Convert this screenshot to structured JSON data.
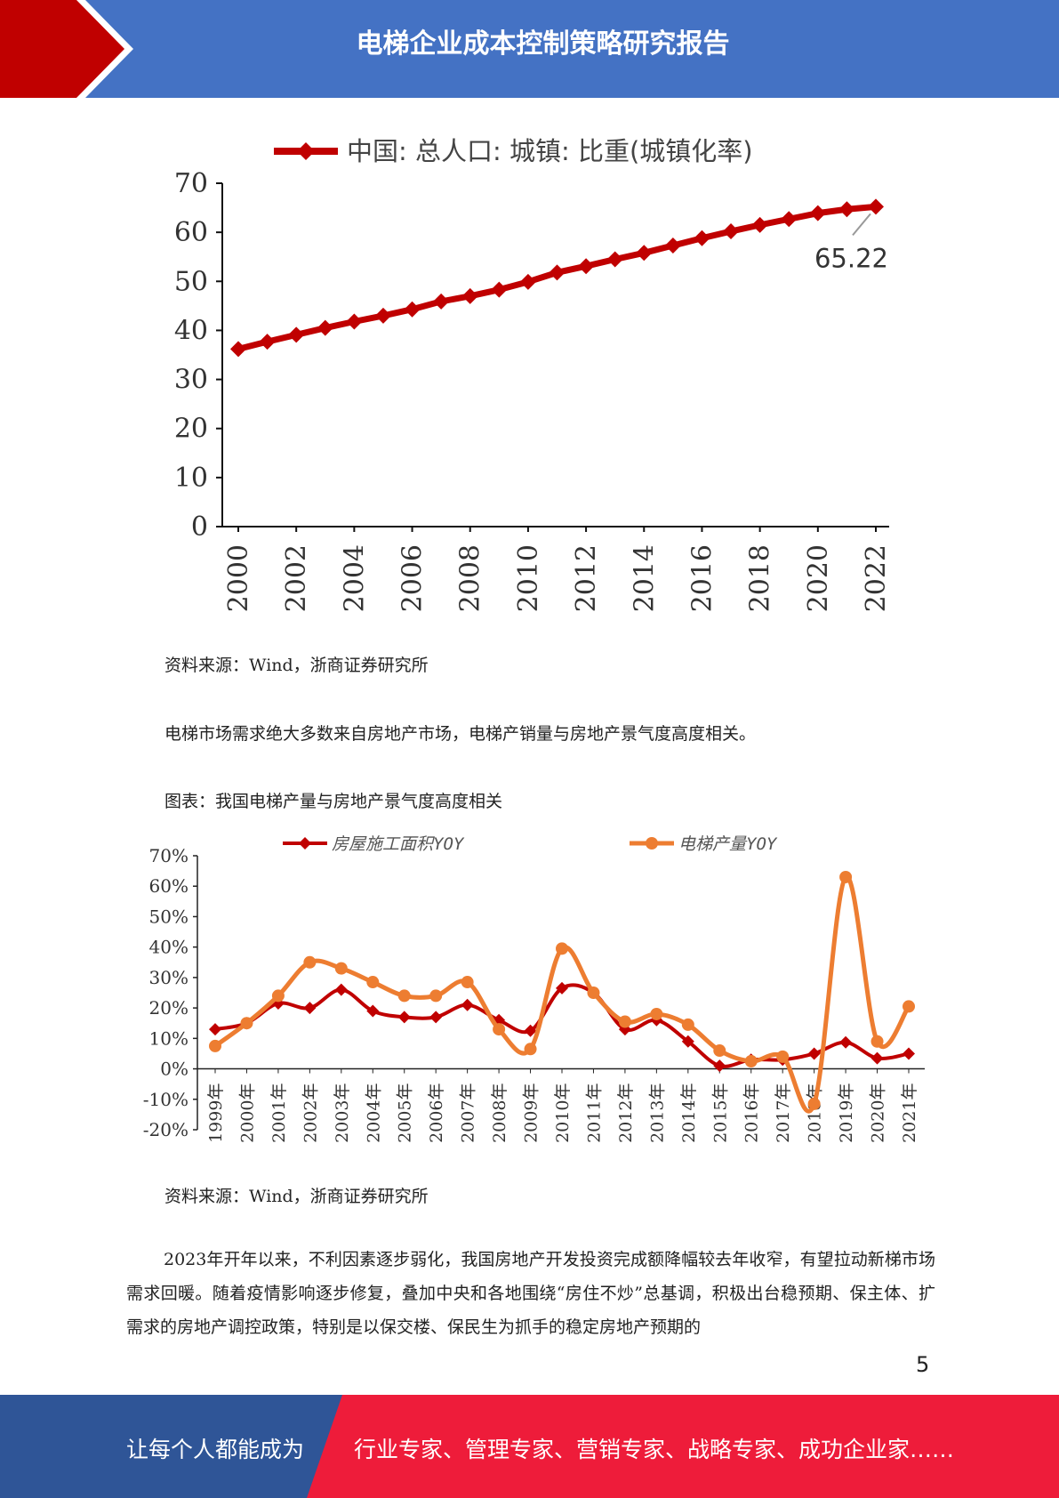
{
  "header": {
    "title": "电梯企业成本控制策略研究报告"
  },
  "chart_data": [
    {
      "type": "line",
      "legend": [
        "中国: 总人口: 城镇: 比重(城镇化率)"
      ],
      "legend_placement": "top",
      "x": [
        2000,
        2001,
        2002,
        2003,
        2004,
        2005,
        2006,
        2007,
        2008,
        2009,
        2010,
        2011,
        2012,
        2013,
        2014,
        2015,
        2016,
        2017,
        2018,
        2019,
        2020,
        2021,
        2022
      ],
      "series": [
        {
          "name": "中国: 总人口: 城镇: 比重(城镇化率)",
          "color": "#c00000",
          "values": [
            36.2,
            37.7,
            39.1,
            40.5,
            41.8,
            43.0,
            44.3,
            45.9,
            47.0,
            48.3,
            49.9,
            51.8,
            53.1,
            54.5,
            55.8,
            57.3,
            58.8,
            60.2,
            61.5,
            62.7,
            63.9,
            64.7,
            65.22
          ]
        }
      ],
      "ylim": [
        0,
        70
      ],
      "yticks": [
        "0",
        "10",
        "20",
        "30",
        "40",
        "50",
        "60",
        "70"
      ],
      "xticks": [
        "2000",
        "2002",
        "2004",
        "2006",
        "2008",
        "2010",
        "2012",
        "2014",
        "2016",
        "2018",
        "2020",
        "2022"
      ],
      "annotation": "65.22",
      "grid": false
    },
    {
      "type": "line",
      "legend_placement": "top",
      "categories": [
        "1999年",
        "2000年",
        "2001年",
        "2002年",
        "2003年",
        "2004年",
        "2005年",
        "2006年",
        "2007年",
        "2008年",
        "2009年",
        "2010年",
        "2011年",
        "2012年",
        "2013年",
        "2014年",
        "2015年",
        "2016年",
        "2017年",
        "2018年",
        "2019年",
        "2020年",
        "2021年"
      ],
      "series": [
        {
          "name": "房屋施工面积YOY",
          "color": "#c00000",
          "marker": "diamond",
          "values": [
            13,
            15,
            21.5,
            20,
            26,
            19,
            17,
            17,
            21,
            16,
            12.5,
            26.5,
            25,
            13,
            16,
            9,
            1,
            3,
            3,
            5,
            8.7,
            3.5,
            5
          ]
        },
        {
          "name": "电梯产量YOY",
          "color": "#ed7d31",
          "marker": "circle",
          "values": [
            7.5,
            15,
            24,
            35,
            33,
            28.5,
            24,
            24,
            28.5,
            13,
            6.5,
            39.5,
            25,
            15.5,
            18,
            14.5,
            6,
            2.5,
            4,
            -11.5,
            63,
            9,
            20.5
          ]
        }
      ],
      "ylim": [
        -20,
        70
      ],
      "yticks": [
        "-20%",
        "-10%",
        "0%",
        "10%",
        "20%",
        "30%",
        "40%",
        "50%",
        "60%",
        "70%"
      ],
      "grid": false
    }
  ],
  "captions": {
    "source1": "资料来源：Wind，浙商证券研究所",
    "sentence": "电梯市场需求绝大多数来自房地产市场，电梯产销量与房地产景气度高度相关。",
    "figure_title": "图表：我国电梯产量与房地产景气度高度相关",
    "source2": "资料来源：Wind，浙商证券研究所"
  },
  "body_paragraph": "2023年开年以来，不利因素逐步弱化，我国房地产开发投资完成额降幅较去年收窄，有望拉动新梯市场需求回暖。随着疫情影响逐步修复，叠加中央和各地围绕“房住不炒”总基调，积极出台稳预期、保主体、扩需求的房地产调控政策，特别是以保交楼、保民生为抓手的稳定房地产预期的",
  "page_number": "5",
  "footer": {
    "slogan_left": "让每个人都能成为",
    "slogan_right": "行业专家、管理专家、营销专家、战略专家、成功企业家……"
  },
  "colors": {
    "header_blue": "#4472c4",
    "accent_red": "#c00000",
    "footer_red": "#ee1c3a",
    "footer_blue": "#2f5597",
    "orange": "#ed7d31"
  }
}
